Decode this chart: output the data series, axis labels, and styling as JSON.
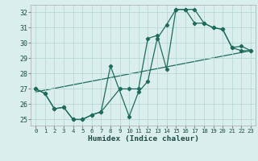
{
  "xlabel": "Humidex (Indice chaleur)",
  "xlim": [
    -0.5,
    23.5
  ],
  "ylim": [
    24.6,
    32.5
  ],
  "xticks": [
    0,
    1,
    2,
    3,
    4,
    5,
    6,
    7,
    8,
    9,
    10,
    11,
    12,
    13,
    14,
    15,
    16,
    17,
    18,
    19,
    20,
    21,
    22,
    23
  ],
  "yticks": [
    25,
    26,
    27,
    28,
    29,
    30,
    31,
    32
  ],
  "background_color": "#daeeed",
  "grid_color": "#b8d8d5",
  "line_color": "#1e6b5e",
  "line1_x": [
    0,
    1,
    2,
    3,
    4,
    5,
    6,
    7,
    9,
    10,
    11,
    12,
    13,
    14,
    15,
    16,
    17,
    18,
    19,
    20,
    21,
    22,
    23
  ],
  "line1_y": [
    27.0,
    26.7,
    25.7,
    25.8,
    25.0,
    25.0,
    25.3,
    25.5,
    27.0,
    27.0,
    27.0,
    30.3,
    30.5,
    28.3,
    32.2,
    32.2,
    32.2,
    31.3,
    31.0,
    30.9,
    29.7,
    29.5,
    29.5
  ],
  "line2_x": [
    0,
    1,
    2,
    3,
    4,
    5,
    6,
    7,
    8,
    10,
    11,
    12,
    13,
    14,
    15,
    16,
    17,
    18,
    19,
    20,
    21,
    22,
    23
  ],
  "line2_y": [
    27.0,
    26.7,
    25.7,
    25.8,
    25.0,
    25.0,
    25.3,
    25.5,
    28.5,
    25.2,
    26.8,
    27.5,
    30.3,
    31.2,
    32.2,
    32.2,
    31.3,
    31.3,
    31.0,
    30.9,
    29.7,
    29.8,
    29.5
  ],
  "line3_x": [
    0,
    23
  ],
  "line3_y": [
    26.8,
    29.5
  ]
}
